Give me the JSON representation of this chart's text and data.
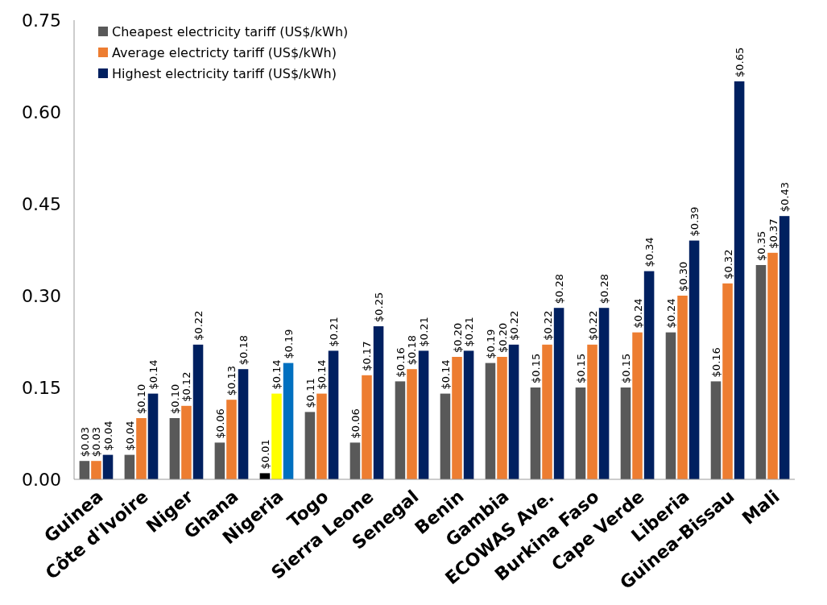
{
  "chart_data": {
    "type": "bar",
    "categories": [
      "Guinea",
      "Côte d'Ivoire",
      "Niger",
      "Ghana",
      "Nigeria",
      "Togo",
      "Sierra Leone",
      "Senegal",
      "Benin",
      "Gambia",
      "ECOWAS Ave.",
      "Burkina Faso",
      "Cape Verde",
      "Liberia",
      "Guinea-Bissau",
      "Mali"
    ],
    "series": [
      {
        "name": "Cheapest electricity tariff (US$/kWh)",
        "color": "#595959",
        "colors": [
          "#595959",
          "#595959",
          "#595959",
          "#595959",
          "#000000",
          "#595959",
          "#595959",
          "#595959",
          "#595959",
          "#595959",
          "#595959",
          "#595959",
          "#595959",
          "#595959",
          "#595959",
          "#595959"
        ],
        "values": [
          0.03,
          0.04,
          0.1,
          0.06,
          0.01,
          0.11,
          0.06,
          0.16,
          0.14,
          0.19,
          0.15,
          0.15,
          0.15,
          0.24,
          0.16,
          0.35
        ],
        "value_labels": [
          "$0.03",
          "$0.04",
          "$0.10",
          "$0.06",
          "$0.01",
          "$0.11",
          "$0.06",
          "$0.16",
          "$0.14",
          "$0.19",
          "$0.15",
          "$0.15",
          "$0.15",
          "$0.24",
          "$0.16",
          "$0.35"
        ]
      },
      {
        "name": "Average electricty tariff (US$/kWh)",
        "color": "#ed7d31",
        "colors": [
          "#ed7d31",
          "#ed7d31",
          "#ed7d31",
          "#ed7d31",
          "#ffff00",
          "#ed7d31",
          "#ed7d31",
          "#ed7d31",
          "#ed7d31",
          "#ed7d31",
          "#ed7d31",
          "#ed7d31",
          "#ed7d31",
          "#ed7d31",
          "#ed7d31",
          "#ed7d31"
        ],
        "values": [
          0.03,
          0.1,
          0.12,
          0.13,
          0.14,
          0.14,
          0.17,
          0.18,
          0.2,
          0.2,
          0.22,
          0.22,
          0.24,
          0.3,
          0.32,
          0.37
        ],
        "value_labels": [
          "$0.03",
          "$0.10",
          "$0.12",
          "$0.13",
          "$0.14",
          "$0.14",
          "$0.17",
          "$0.18",
          "$0.20",
          "$0.20",
          "$0.22",
          "$0.22",
          "$0.24",
          "$0.30",
          "$0.32",
          "$0.37"
        ]
      },
      {
        "name": "Highest electricity tariff (US$/kWh)",
        "color": "#002060",
        "colors": [
          "#002060",
          "#002060",
          "#002060",
          "#002060",
          "#0070c0",
          "#002060",
          "#002060",
          "#002060",
          "#002060",
          "#002060",
          "#002060",
          "#002060",
          "#002060",
          "#002060",
          "#002060",
          "#002060"
        ],
        "values": [
          0.04,
          0.14,
          0.22,
          0.18,
          0.19,
          0.21,
          0.25,
          0.21,
          0.21,
          0.22,
          0.28,
          0.28,
          0.34,
          0.39,
          0.65,
          0.43
        ],
        "value_labels": [
          "$0.04",
          "$0.14",
          "$0.22",
          "$0.18",
          "$0.19",
          "$0.21",
          "$0.25",
          "$0.21",
          "$0.21",
          "$0.22",
          "$0.28",
          "$0.28",
          "$0.34",
          "$0.39",
          "$0.65",
          "$0.43"
        ]
      }
    ],
    "ylim": [
      0,
      0.75
    ],
    "yticks": [
      {
        "value": 0,
        "label": "0.00"
      },
      0.15,
      {
        "value": 0.3,
        "label": "0.30"
      },
      0.45,
      {
        "value": 0.6,
        "label": "0.60"
      },
      0.75
    ],
    "legend": "top left"
  }
}
